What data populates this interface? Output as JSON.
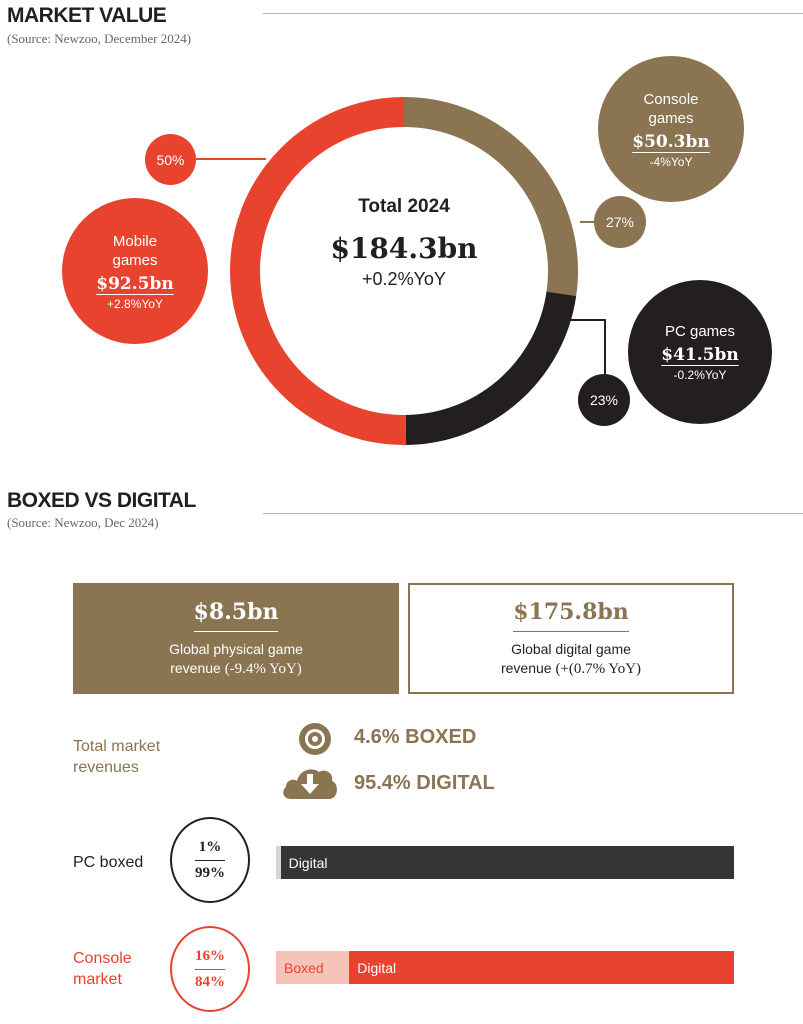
{
  "market": {
    "title": "MARKET VALUE",
    "source": "(Source: Newzoo, December 2024)",
    "center_title": "Total 2024",
    "center_value": "$184.3bn",
    "center_yoy": "+0.2%YoY",
    "segments": {
      "mobile": {
        "name_line1": "Mobile",
        "name_line2": "games",
        "value": "$92.5bn",
        "yoy": "+2.8%YoY",
        "pct": "50%",
        "color": "#e8432f"
      },
      "console": {
        "name_line1": "Console",
        "name_line2": "games",
        "value": "$50.3bn",
        "yoy": "-4%YoY",
        "pct": "27%",
        "color": "#8b7451"
      },
      "pc": {
        "name": "PC games",
        "value": "$41.5bn",
        "yoy": "-0.2%YoY",
        "pct": "23%",
        "color": "#231f20"
      }
    }
  },
  "boxed": {
    "title": "BOXED VS DIGITAL",
    "source": "(Source: Newzoo, Dec 2024)",
    "physical": {
      "value": "$8.5bn",
      "line1": "Global physical game",
      "line2_prefix": "revenue",
      "line2_serif": "(-9.4% YoY)"
    },
    "digital": {
      "value": "$175.8bn",
      "line1": "Global digital game",
      "line2_prefix": "revenue",
      "line2_serif": "(+(0.7% YoY)"
    },
    "total_label_line1": "Total market",
    "total_label_line2": "revenues",
    "boxed_stat": "4.6% BOXED",
    "digital_stat": "95.4% DIGITAL",
    "pc_row": {
      "label": "PC boxed",
      "top": "1%",
      "bottom": "99%",
      "digital_label": "Digital"
    },
    "console_row": {
      "label_line1": "Console",
      "label_line2": "market",
      "top": "16%",
      "bottom": "84%",
      "boxed_label": "Boxed",
      "digital_label": "Digital"
    },
    "icons": {
      "boxed": "disc-icon",
      "digital": "cloud-download-icon"
    }
  },
  "chart_data": [
    {
      "type": "pie",
      "title": "MARKET VALUE",
      "categories": [
        "Mobile games",
        "Console games",
        "PC games"
      ],
      "values": [
        92.5,
        50.3,
        41.5
      ],
      "percent_labels": [
        50,
        27,
        23
      ],
      "colors": [
        "#e8432f",
        "#8b7451",
        "#231f20"
      ],
      "total": 184.3,
      "unit": "bn USD"
    },
    {
      "type": "bar",
      "title": "PC boxed",
      "categories": [
        "Boxed",
        "Digital"
      ],
      "values": [
        1,
        99
      ],
      "unit": "%",
      "colors": [
        "#d8d6d2",
        "#353535"
      ]
    },
    {
      "type": "bar",
      "title": "Console market",
      "categories": [
        "Boxed",
        "Digital"
      ],
      "values": [
        16,
        84
      ],
      "unit": "%",
      "colors": [
        "#f7c3b8",
        "#e8432f"
      ]
    }
  ]
}
